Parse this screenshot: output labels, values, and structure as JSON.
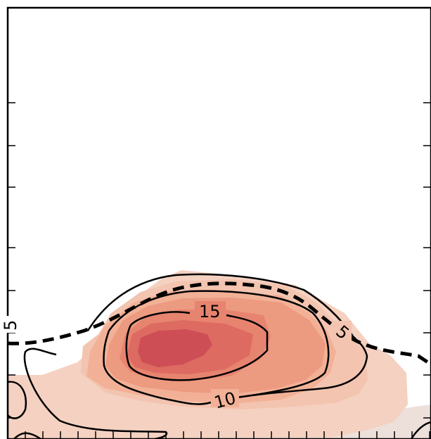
{
  "chart_data": {
    "type": "contour",
    "title": "",
    "xlabel": "",
    "ylabel": "",
    "grid": false,
    "legend": "none",
    "colors": {
      "level_1": "#f4d1c1",
      "level_2": "#f3c4b0",
      "level_3": "#f2b197",
      "level_4": "#ec9a80",
      "level_5": "#e7846f",
      "level_6": "#dd6b62",
      "level_7": "#cd4f55",
      "background_band": "#ede0db",
      "contour_line": "#000000"
    },
    "contour_labels": [
      {
        "name": "label-5-left",
        "text": "5"
      },
      {
        "name": "label-5-right",
        "text": "5"
      },
      {
        "name": "label-15",
        "text": "15"
      },
      {
        "name": "label-10",
        "text": "10"
      }
    ]
  }
}
